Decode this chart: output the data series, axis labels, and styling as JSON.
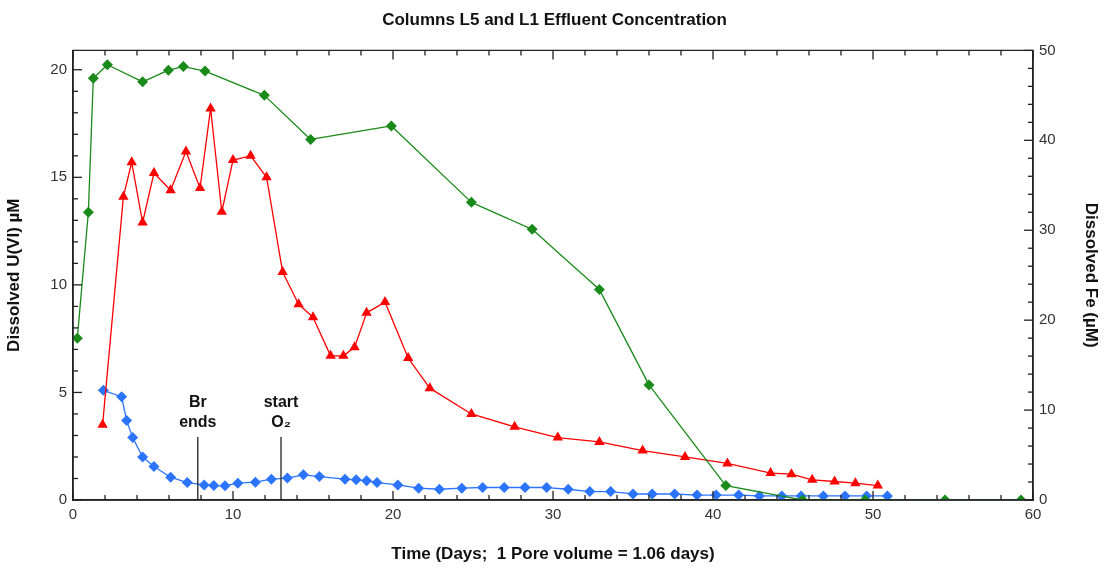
{
  "chart_data": {
    "type": "line",
    "title": "Columns L5 and L1 Effluent Concentration",
    "xlabel": "Time (Days;  1 Pore volume = 1.06 days)",
    "ylabel": "Dissolved U(VI) µM",
    "y2label": "Dissolved Fe (µM)",
    "xlim": [
      0,
      60
    ],
    "xticks": [
      0,
      {
        "value": 2,
        "label": null
      },
      {
        "value": 4,
        "label": null
      },
      {
        "value": 6,
        "label": null
      },
      {
        "value": 8,
        "label": null
      },
      10,
      {
        "value": 12,
        "label": null
      },
      {
        "value": 14,
        "label": null
      },
      {
        "value": 16,
        "label": null
      },
      {
        "value": 18,
        "label": null
      },
      20,
      {
        "value": 22,
        "label": null
      },
      {
        "value": 24,
        "label": null
      },
      {
        "value": 26,
        "label": null
      },
      {
        "value": 28,
        "label": null
      },
      30,
      {
        "value": 32,
        "label": null
      },
      {
        "value": 34,
        "label": null
      },
      {
        "value": 36,
        "label": null
      },
      {
        "value": 38,
        "label": null
      },
      40,
      {
        "value": 42,
        "label": null
      },
      {
        "value": 44,
        "label": null
      },
      {
        "value": 46,
        "label": null
      },
      {
        "value": 48,
        "label": null
      },
      50,
      {
        "value": 52,
        "label": null
      },
      {
        "value": 54,
        "label": null
      },
      {
        "value": 56,
        "label": null
      },
      {
        "value": 58,
        "label": null
      },
      60
    ],
    "ylim": [
      0,
      20.9
    ],
    "yticks": [
      0,
      {
        "value": 1,
        "label": null
      },
      {
        "value": 2,
        "label": null
      },
      {
        "value": 3,
        "label": null
      },
      {
        "value": 4,
        "label": null
      },
      5,
      {
        "value": 6,
        "label": null
      },
      {
        "value": 7,
        "label": null
      },
      {
        "value": 8,
        "label": null
      },
      {
        "value": 9,
        "label": null
      },
      10,
      {
        "value": 11,
        "label": null
      },
      {
        "value": 12,
        "label": null
      },
      {
        "value": 13,
        "label": null
      },
      {
        "value": 14,
        "label": null
      },
      15,
      {
        "value": 16,
        "label": null
      },
      {
        "value": 17,
        "label": null
      },
      {
        "value": 18,
        "label": null
      },
      {
        "value": 19,
        "label": null
      },
      20
    ],
    "y2lim": [
      0,
      50
    ],
    "y2ticks": [
      0,
      {
        "value": 2,
        "label": null
      },
      {
        "value": 4,
        "label": null
      },
      {
        "value": 6,
        "label": null
      },
      {
        "value": 8,
        "label": null
      },
      10,
      {
        "value": 12,
        "label": null
      },
      {
        "value": 14,
        "label": null
      },
      {
        "value": 16,
        "label": null
      },
      {
        "value": 18,
        "label": null
      },
      20,
      {
        "value": 22,
        "label": null
      },
      {
        "value": 24,
        "label": null
      },
      {
        "value": 26,
        "label": null
      },
      {
        "value": 28,
        "label": null
      },
      30,
      {
        "value": 32,
        "label": null
      },
      {
        "value": 34,
        "label": null
      },
      {
        "value": 36,
        "label": null
      },
      {
        "value": 38,
        "label": null
      },
      40,
      {
        "value": 42,
        "label": null
      },
      {
        "value": 44,
        "label": null
      },
      {
        "value": 46,
        "label": null
      },
      {
        "value": 48,
        "label": null
      },
      50
    ],
    "grid": false,
    "legend": false,
    "line_style": "solid",
    "series": [
      {
        "color": "#1a8a1a",
        "marker": "diamond",
        "axis": "y2",
        "x": [
          0.27,
          0.96,
          1.27,
          2.15,
          4.35,
          5.96,
          6.9,
          8.25,
          11.96,
          14.85,
          19.9,
          24.9,
          28.7,
          32.9,
          36.0,
          40.8,
          45.6,
          49.5,
          54.5,
          59.25
        ],
        "values": [
          18.0,
          32.0,
          46.9,
          48.4,
          46.5,
          47.8,
          48.2,
          47.7,
          45.0,
          40.1,
          41.6,
          33.1,
          30.1,
          23.4,
          12.8,
          1.6,
          0,
          0,
          0,
          0
        ]
      },
      {
        "color": "#ff0000",
        "marker": "triangle",
        "axis": "y",
        "x": [
          1.85,
          3.15,
          3.67,
          4.35,
          5.06,
          6.1,
          7.06,
          7.94,
          8.6,
          9.3,
          10.0,
          11.1,
          12.1,
          13.1,
          14.1,
          15.0,
          16.1,
          16.9,
          17.6,
          18.35,
          19.5,
          20.95,
          22.3,
          24.9,
          27.6,
          30.3,
          32.9,
          35.6,
          38.25,
          40.9,
          43.6,
          44.9,
          46.2,
          47.6,
          48.9,
          50.3
        ],
        "values": [
          3.5,
          14.1,
          15.7,
          12.9,
          15.2,
          14.4,
          16.2,
          14.5,
          18.2,
          13.4,
          15.8,
          16.0,
          15.0,
          10.6,
          9.1,
          8.5,
          6.7,
          6.7,
          7.1,
          8.7,
          9.2,
          6.6,
          5.2,
          4.0,
          3.4,
          2.9,
          2.7,
          2.3,
          2.0,
          1.7,
          1.25,
          1.2,
          0.94,
          0.86,
          0.78,
          0.67
        ]
      },
      {
        "color": "#2b74ff",
        "marker": "diamond",
        "axis": "y",
        "x": [
          1.9,
          3.04,
          3.35,
          3.73,
          4.35,
          5.06,
          6.1,
          7.14,
          8.2,
          8.8,
          9.5,
          10.3,
          11.4,
          12.4,
          13.4,
          14.4,
          15.4,
          17.0,
          17.7,
          18.35,
          19.0,
          20.3,
          21.6,
          22.9,
          24.3,
          25.6,
          26.95,
          28.25,
          29.6,
          30.95,
          32.3,
          33.6,
          35.0,
          36.2,
          37.6,
          39.0,
          40.2,
          41.6,
          42.9,
          44.3,
          45.5,
          46.9,
          48.25,
          49.6,
          50.9
        ],
        "values": [
          5.1,
          4.8,
          3.7,
          2.9,
          2.0,
          1.56,
          1.06,
          0.81,
          0.7,
          0.67,
          0.66,
          0.78,
          0.83,
          0.97,
          1.02,
          1.17,
          1.09,
          0.97,
          0.94,
          0.89,
          0.81,
          0.7,
          0.55,
          0.5,
          0.55,
          0.58,
          0.58,
          0.58,
          0.58,
          0.5,
          0.39,
          0.39,
          0.28,
          0.28,
          0.28,
          0.23,
          0.23,
          0.23,
          0.19,
          0.19,
          0.19,
          0.19,
          0.19,
          0.19,
          0.19
        ]
      }
    ],
    "ref_lines": [
      {
        "axis": "x",
        "value": 7.8,
        "label": "Br ends"
      },
      {
        "axis": "x",
        "value": 13.0,
        "label": "start O₂"
      }
    ]
  }
}
